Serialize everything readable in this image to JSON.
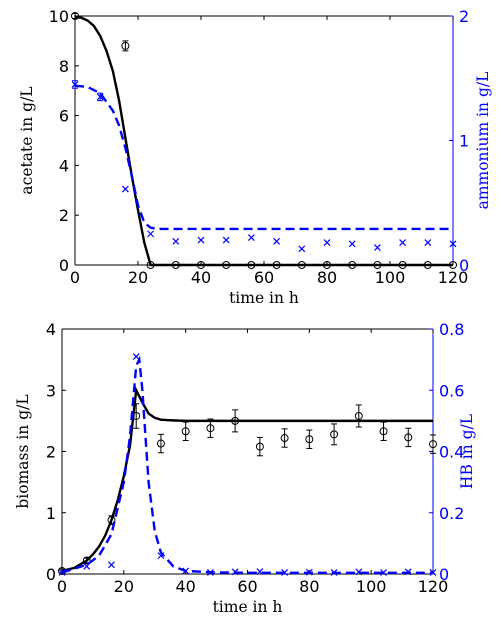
{
  "colors": {
    "black": "#000000",
    "blue": "#0000ff"
  },
  "chart_data": [
    {
      "type": "line",
      "xlabel": "time in h",
      "ylabel_left": "acetate in g/L",
      "ylabel_right": "ammonium in g/L",
      "xlim": [
        0,
        120
      ],
      "ylim_left": [
        0,
        10
      ],
      "ylim_right": [
        0,
        2
      ],
      "x_ticks": [
        "0",
        "20",
        "40",
        "60",
        "80",
        "100",
        "120"
      ],
      "y_ticks_left": [
        "0",
        "2",
        "4",
        "6",
        "8",
        "10"
      ],
      "y_ticks_right": [
        "0",
        "1",
        "2"
      ],
      "grid": false,
      "series": [
        {
          "axis": "left",
          "style": "solid",
          "color": "#000000",
          "x": [
            0,
            2,
            4,
            6,
            8,
            10,
            12,
            14,
            16,
            18,
            20,
            22,
            24,
            30,
            40,
            60,
            80,
            100,
            120
          ],
          "y": [
            9.95,
            9.93,
            9.82,
            9.6,
            9.2,
            8.6,
            7.8,
            6.6,
            5.1,
            3.6,
            2.2,
            0.9,
            0,
            0,
            0,
            0,
            0,
            0,
            0
          ]
        },
        {
          "axis": "left",
          "marker": "o",
          "color": "#000000",
          "x": [
            0,
            16,
            24,
            32,
            40,
            48,
            56,
            64,
            72,
            80,
            88,
            96,
            104,
            112,
            120
          ],
          "y": [
            10,
            8.8,
            0,
            0,
            0,
            0,
            0,
            0,
            0,
            0,
            0,
            0,
            0,
            0,
            0
          ],
          "err": [
            0.1,
            0.2,
            0,
            0,
            0,
            0,
            0,
            0,
            0,
            0,
            0,
            0,
            0,
            0,
            0
          ]
        },
        {
          "axis": "right",
          "style": "dashed",
          "color": "#0000ff",
          "x": [
            0,
            4,
            8,
            12,
            14,
            16,
            18,
            20,
            22,
            24,
            26,
            30,
            40,
            60,
            80,
            100,
            120
          ],
          "y": [
            1.44,
            1.43,
            1.38,
            1.24,
            1.12,
            0.94,
            0.72,
            0.48,
            0.34,
            0.3,
            0.29,
            0.29,
            0.29,
            0.29,
            0.29,
            0.29,
            0.29
          ]
        },
        {
          "axis": "right",
          "marker": "x",
          "color": "#0000ff",
          "x": [
            0,
            8,
            16,
            24,
            32,
            40,
            48,
            56,
            64,
            72,
            80,
            88,
            96,
            104,
            112,
            120
          ],
          "y": [
            1.45,
            1.35,
            0.61,
            0.25,
            0.19,
            0.2,
            0.2,
            0.22,
            0.19,
            0.13,
            0.18,
            0.17,
            0.14,
            0.18,
            0.18,
            0.17
          ],
          "err": [
            0.03,
            0.03,
            0,
            0,
            0,
            0,
            0,
            0,
            0,
            0,
            0,
            0,
            0,
            0,
            0,
            0
          ]
        }
      ]
    },
    {
      "type": "line",
      "xlabel": "time in h",
      "ylabel_left": "biomass in g/L",
      "ylabel_right": "HB in g/L",
      "xlim": [
        0,
        120
      ],
      "ylim_left": [
        0,
        4
      ],
      "ylim_right": [
        0,
        0.8
      ],
      "x_ticks": [
        "0",
        "20",
        "40",
        "60",
        "80",
        "100",
        "120"
      ],
      "y_ticks_left": [
        "0",
        "1",
        "2",
        "3",
        "4"
      ],
      "y_ticks_right": [
        "0",
        "0.2",
        "0.4",
        "0.6",
        "0.8"
      ],
      "grid": false,
      "series": [
        {
          "axis": "left",
          "style": "solid",
          "color": "#000000",
          "x": [
            0,
            4,
            8,
            10,
            12,
            14,
            16,
            18,
            20,
            22,
            24,
            26,
            28,
            30,
            32,
            35,
            40,
            60,
            80,
            100,
            120
          ],
          "y": [
            0.05,
            0.1,
            0.22,
            0.32,
            0.45,
            0.63,
            0.88,
            1.2,
            1.6,
            2.1,
            3.0,
            2.8,
            2.62,
            2.55,
            2.52,
            2.51,
            2.5,
            2.5,
            2.5,
            2.5,
            2.5
          ]
        },
        {
          "axis": "left",
          "marker": "o",
          "color": "#000000",
          "x": [
            0,
            8,
            16,
            24,
            32,
            40,
            48,
            56,
            64,
            72,
            80,
            88,
            96,
            104,
            112,
            120
          ],
          "y": [
            0.05,
            0.22,
            0.88,
            2.58,
            2.13,
            2.33,
            2.38,
            2.5,
            2.08,
            2.22,
            2.2,
            2.28,
            2.58,
            2.33,
            2.23,
            2.12
          ],
          "err": [
            0.03,
            0.04,
            0.07,
            0.2,
            0.15,
            0.15,
            0.15,
            0.18,
            0.15,
            0.15,
            0.15,
            0.17,
            0.18,
            0.15,
            0.15,
            0.15
          ]
        },
        {
          "axis": "right",
          "style": "dashed",
          "color": "#0000ff",
          "x": [
            0,
            8,
            12,
            16,
            20,
            22,
            24,
            25,
            26,
            27,
            28,
            30,
            32,
            36,
            40,
            50,
            60,
            80,
            100,
            120
          ],
          "y": [
            0.005,
            0.03,
            0.06,
            0.13,
            0.3,
            0.45,
            0.68,
            0.7,
            0.6,
            0.45,
            0.3,
            0.14,
            0.07,
            0.025,
            0.01,
            0.005,
            0.004,
            0.004,
            0.004,
            0.004
          ]
        },
        {
          "axis": "right",
          "marker": "x",
          "color": "#0000ff",
          "x": [
            0,
            8,
            16,
            24,
            32,
            40,
            48,
            56,
            64,
            72,
            80,
            88,
            96,
            104,
            112,
            120
          ],
          "y": [
            0.005,
            0.025,
            0.03,
            0.71,
            0.06,
            0.01,
            0.005,
            0.007,
            0.008,
            0.005,
            0.006,
            0.005,
            0.007,
            0.005,
            0.007,
            0.005
          ]
        }
      ]
    }
  ]
}
